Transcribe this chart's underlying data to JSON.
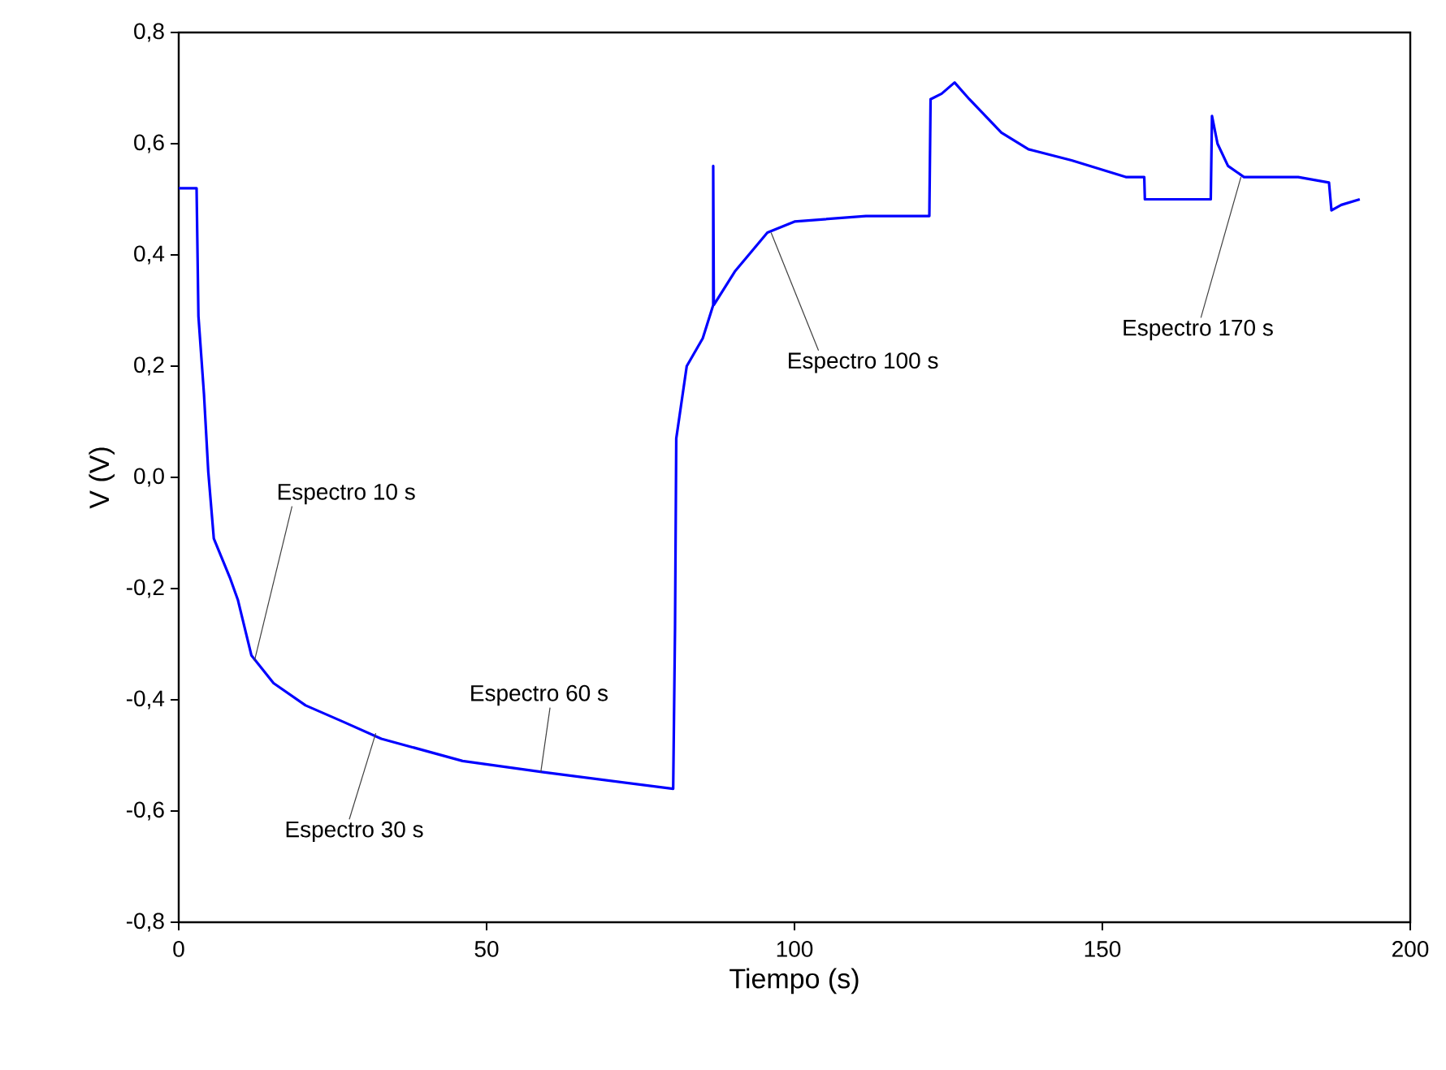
{
  "chart_data": {
    "type": "line",
    "xlabel": "Tiempo (s)",
    "ylabel": "V (V)",
    "xlim": [
      0,
      200
    ],
    "ylim": [
      -0.8,
      0.8
    ],
    "xticks": [
      0,
      50,
      100,
      150,
      200
    ],
    "yticks": [
      {
        "value": -0.8,
        "label": "-0,8"
      },
      {
        "value": -0.6,
        "label": "-0,6"
      },
      {
        "value": -0.4,
        "label": "-0,4"
      },
      {
        "value": -0.2,
        "label": "-0,2"
      },
      {
        "value": 0,
        "label": "0,0"
      },
      {
        "value": 0.2,
        "label": "0,2"
      },
      {
        "value": 0.4,
        "label": "0,4"
      },
      {
        "value": 0.6,
        "label": "0,6"
      },
      {
        "value": 0.8,
        "label": "0,8"
      }
    ],
    "line_style": "solid",
    "series": [
      {
        "color": "#0000ff",
        "x": [
          0,
          2.9,
          3.2,
          4.1,
          4.8,
          5.7,
          8.3,
          9.6,
          11.8,
          15.4,
          20.6,
          26.8,
          32.9,
          46.1,
          59.2,
          80.3,
          80.6,
          80.8,
          82.5,
          85.1,
          86.8,
          86.8,
          86.9,
          90.3,
          95.6,
          100,
          111.6,
          121.9,
          122.1,
          123.9,
          126,
          128.4,
          133.6,
          138,
          145,
          153.8,
          156.8,
          156.9,
          157.7,
          167.6,
          167.8,
          168.7,
          170.4,
          173,
          181.8,
          186.8,
          187.2,
          188.8,
          191.8
        ],
        "values": [
          0.52,
          0.52,
          0.29,
          0.15,
          0.01,
          -0.11,
          -0.18,
          -0.22,
          -0.32,
          -0.37,
          -0.41,
          -0.44,
          -0.47,
          -0.51,
          -0.53,
          -0.56,
          -0.27,
          0.07,
          0.2,
          0.25,
          0.31,
          0.56,
          0.31,
          0.37,
          0.44,
          0.46,
          0.47,
          0.47,
          0.68,
          0.69,
          0.71,
          0.68,
          0.62,
          0.59,
          0.57,
          0.54,
          0.54,
          0.5,
          0.5,
          0.5,
          0.65,
          0.6,
          0.56,
          0.54,
          0.54,
          0.53,
          0.48,
          0.49,
          0.5
        ]
      }
    ],
    "annotations": [
      {
        "text": "Espectro 10 s",
        "x": 12.3,
        "y": -0.33
      },
      {
        "text": "Espectro 30 s",
        "x": 32,
        "y": -0.46
      },
      {
        "text": "Espectro 60 s",
        "x": 58.8,
        "y": -0.53
      },
      {
        "text": "Espectro 100 s",
        "x": 96.2,
        "y": 0.44
      },
      {
        "text": "Espectro 170 s",
        "x": 172.5,
        "y": 0.54
      }
    ]
  }
}
